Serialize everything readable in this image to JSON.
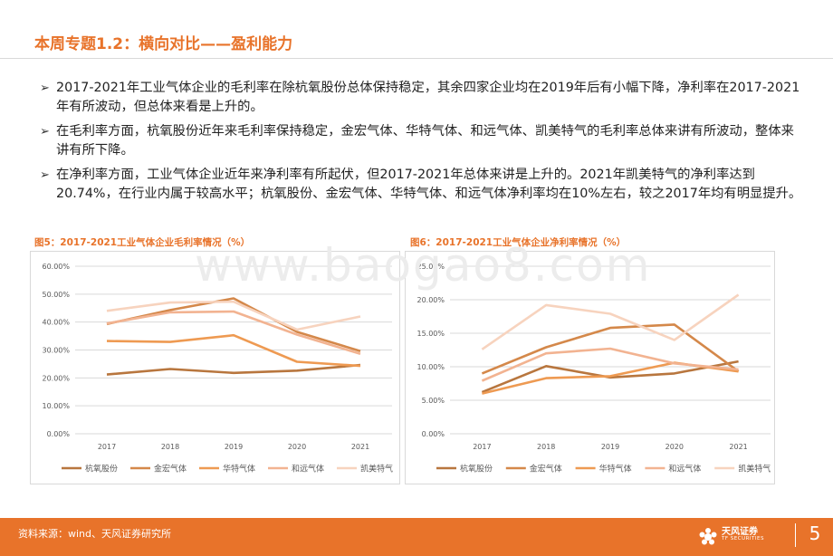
{
  "page": {
    "title": "本周专题1.2：横向对比——盈利能力",
    "bullets": [
      "2017-2021年工业气体企业的毛利率在除杭氧股份总体保持稳定，其余四家企业均在2019年后有小幅下降，净利率在2017-2021年有所波动，但总体来看是上升的。",
      "在毛利率方面，杭氧股份近年来毛利率保持稳定，金宏气体、华特气体、和远气体、凯美特气的毛利率总体来讲有所波动，整体来讲有所下降。",
      "在净利率方面，工业气体企业近年来净利率有所起伏，但2017-2021年总体来讲是上升的。2021年凯美特气的净利率达到20.74%，在行业内属于较高水平；杭氧股份、金宏气体、华特气体、和远气体净利率均在10%左右，较之2017年均有明显提升。"
    ],
    "watermark": "www.baogao8.com",
    "footer_source": "资料来源：wind、天风证券研究所",
    "logo_text": "天风证券",
    "logo_sub": "TF SECURITIES",
    "page_number": "5"
  },
  "chart_data": [
    {
      "type": "line",
      "figure_label": "图5：2017-2021工业气体企业毛利率情况（%）",
      "x": [
        "2017",
        "2018",
        "2019",
        "2020",
        "2021"
      ],
      "ylim": [
        0,
        60
      ],
      "yticks": [
        "0.00%",
        "10.00%",
        "20.00%",
        "30.00%",
        "40.00%",
        "50.00%",
        "60.00%"
      ],
      "grid": true,
      "legend": "bottom",
      "series": [
        {
          "name": "杭氧股份",
          "color": "#B8763E",
          "values": [
            21.2,
            23.2,
            21.8,
            22.6,
            24.6
          ]
        },
        {
          "name": "金宏气体",
          "color": "#D4884A",
          "values": [
            39.3,
            44.3,
            48.5,
            36.5,
            29.6
          ]
        },
        {
          "name": "华特气体",
          "color": "#EE9A52",
          "values": [
            33.2,
            32.9,
            35.3,
            25.8,
            24.3
          ]
        },
        {
          "name": "和远气体",
          "color": "#F2B391",
          "values": [
            39.5,
            43.5,
            43.8,
            35.5,
            28.6
          ]
        },
        {
          "name": "凯美特气",
          "color": "#F7D3BE",
          "values": [
            44.0,
            47.0,
            47.3,
            37.3,
            42.0
          ]
        }
      ]
    },
    {
      "type": "line",
      "figure_label": "图6：2017-2021工业气体企业净利率情况（%）",
      "x": [
        "2017",
        "2018",
        "2019",
        "2020",
        "2021"
      ],
      "ylim": [
        0,
        25
      ],
      "yticks": [
        "0.00%",
        "5.00%",
        "10.00%",
        "15.00%",
        "20.00%",
        "25.00%"
      ],
      "grid": true,
      "legend": "bottom",
      "series": [
        {
          "name": "杭氧股份",
          "color": "#B8763E",
          "values": [
            6.2,
            10.1,
            8.4,
            9.0,
            10.8
          ]
        },
        {
          "name": "金宏气体",
          "color": "#D4884A",
          "values": [
            9.0,
            12.9,
            15.8,
            16.3,
            9.3
          ]
        },
        {
          "name": "华特气体",
          "color": "#EE9A52",
          "values": [
            6.0,
            8.3,
            8.6,
            10.6,
            9.3
          ]
        },
        {
          "name": "和远气体",
          "color": "#F2B391",
          "values": [
            7.9,
            12.0,
            12.7,
            10.5,
            9.6
          ]
        },
        {
          "name": "凯美特气",
          "color": "#F7D3BE",
          "values": [
            12.6,
            19.2,
            17.9,
            14.0,
            20.74
          ]
        }
      ]
    }
  ]
}
